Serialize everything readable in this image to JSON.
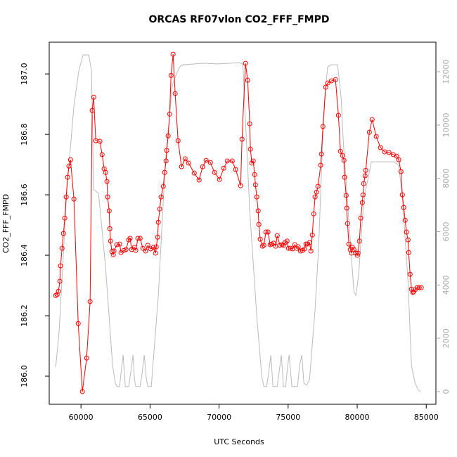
{
  "chart_data": {
    "type": "line",
    "title": "ORCAS RF07vlon CO2_FFF_FMPD",
    "x_label": "UTC Seconds",
    "y_label": "CO2_FFF_FMPD",
    "xlim": [
      57700,
      85700
    ],
    "ylim": [
      185.907,
      187.105
    ],
    "y2lim": [
      -475,
      13108
    ],
    "xticks": [
      60000,
      65000,
      70000,
      75000,
      80000,
      85000
    ],
    "yticks": [
      {
        "value": 186.0,
        "label": "186.0"
      },
      186.2,
      186.4,
      186.6,
      186.8,
      {
        "value": 187.0,
        "label": "187.0"
      }
    ],
    "y2ticks": [
      0,
      2000,
      4000,
      6000,
      8000,
      10000,
      12000
    ],
    "grid": false,
    "series": [
      {
        "color": "#bbbbbb",
        "axis": "y2",
        "x": [
          58170,
          58420,
          58980,
          59490,
          59850,
          60150,
          60560,
          60760,
          60920,
          61270,
          61780,
          62290,
          62490,
          62600,
          62800,
          62900,
          63050,
          63210,
          63460,
          63670,
          63770,
          63870,
          63970,
          64280,
          64430,
          64580,
          64740,
          64840,
          65090,
          65600,
          66110,
          66620,
          67130,
          67380,
          68910,
          69930,
          71460,
          71720,
          71860,
          72220,
          72730,
          73090,
          73240,
          73440,
          73590,
          73750,
          73900,
          74210,
          74410,
          74510,
          74660,
          74820,
          74970,
          75070,
          75270,
          75680,
          75830,
          75990,
          76140,
          76340,
          76550,
          76950,
          77210,
          77460,
          77670,
          77870,
          78080,
          78580,
          78840,
          78990,
          79350,
          79600,
          79760,
          79910,
          80110,
          80420,
          80620,
          81030,
          81230,
          82660,
          83010,
          83270,
          83680,
          83930,
          84190,
          84440,
          84590
        ],
        "values": [
          920,
          2290,
          7570,
          10730,
          12050,
          12630,
          12630,
          12050,
          7570,
          7440,
          4670,
          980,
          320,
          190,
          190,
          710,
          1370,
          190,
          190,
          980,
          1370,
          450,
          190,
          190,
          710,
          1370,
          450,
          190,
          190,
          3610,
          8620,
          11520,
          12180,
          12260,
          12320,
          12290,
          12340,
          12290,
          10730,
          6780,
          2820,
          580,
          190,
          190,
          710,
          1370,
          190,
          190,
          980,
          1370,
          190,
          190,
          980,
          1370,
          190,
          190,
          980,
          1370,
          320,
          240,
          450,
          3090,
          5460,
          8890,
          11260,
          12180,
          12260,
          12260,
          11000,
          9410,
          6780,
          4930,
          3750,
          3610,
          4400,
          6780,
          7570,
          8620,
          8620,
          8620,
          8490,
          7300,
          4140,
          980,
          320,
          50,
          0
        ]
      },
      {
        "color": "#ff0000",
        "marker": "circle",
        "x": [
          58170,
          58270,
          58370,
          58470,
          58520,
          58630,
          58730,
          58830,
          58930,
          59030,
          59130,
          59240,
          59490,
          59800,
          60100,
          60410,
          60660,
          60810,
          60920,
          61070,
          61370,
          61530,
          61680,
          61780,
          61880,
          61930,
          62040,
          62090,
          62140,
          62240,
          62340,
          62390,
          62600,
          62800,
          62900,
          63110,
          63260,
          63460,
          63560,
          63670,
          63870,
          63970,
          64120,
          64280,
          64480,
          64680,
          64840,
          65040,
          65240,
          65400,
          65450,
          65550,
          65600,
          65700,
          65800,
          65960,
          66060,
          66160,
          66210,
          66310,
          66420,
          66520,
          66670,
          66820,
          67030,
          67280,
          67540,
          67790,
          68200,
          68550,
          68810,
          69060,
          69370,
          69670,
          70030,
          70340,
          70590,
          70950,
          71200,
          71560,
          71660,
          71910,
          72070,
          72220,
          72270,
          72370,
          72470,
          72580,
          72630,
          72730,
          72830,
          72880,
          72980,
          73140,
          73240,
          73390,
          73540,
          73700,
          73800,
          73950,
          74100,
          74210,
          74410,
          74560,
          74660,
          74770,
          74920,
          75020,
          75170,
          75330,
          75480,
          75630,
          75730,
          75890,
          76040,
          76190,
          76290,
          76390,
          76550,
          76650,
          76750,
          76850,
          76950,
          77060,
          77160,
          77360,
          77410,
          77520,
          77720,
          77870,
          78130,
          78430,
          78640,
          78790,
          78940,
          79040,
          79090,
          79200,
          79250,
          79300,
          79400,
          79500,
          79600,
          79650,
          79760,
          79910,
          80010,
          80060,
          80160,
          80260,
          80370,
          80420,
          80470,
          80570,
          80620,
          80880,
          81080,
          81380,
          81690,
          81990,
          82300,
          82610,
          82860,
          83010,
          83170,
          83270,
          83370,
          83470,
          83570,
          83680,
          83730,
          83830,
          83930,
          84030,
          84080,
          84190,
          84340,
          84490,
          84640
        ],
        "values": [
          186.267,
          186.27,
          186.281,
          186.314,
          186.365,
          186.423,
          186.472,
          186.523,
          186.593,
          186.658,
          186.695,
          186.716,
          186.586,
          186.174,
          185.949,
          186.06,
          186.247,
          186.879,
          186.923,
          186.779,
          186.777,
          186.733,
          186.686,
          186.674,
          186.644,
          186.593,
          186.547,
          186.488,
          186.447,
          186.412,
          186.402,
          186.414,
          186.435,
          186.437,
          186.409,
          186.416,
          186.419,
          186.451,
          186.456,
          186.419,
          186.426,
          186.416,
          186.456,
          186.456,
          186.423,
          186.414,
          186.433,
          186.421,
          186.426,
          186.407,
          186.428,
          186.46,
          186.509,
          186.553,
          186.593,
          186.628,
          186.674,
          186.712,
          186.747,
          186.795,
          186.867,
          186.995,
          187.065,
          186.935,
          186.779,
          186.693,
          186.719,
          186.705,
          186.672,
          186.649,
          186.693,
          186.714,
          186.707,
          186.674,
          186.651,
          186.688,
          186.712,
          186.712,
          186.684,
          186.63,
          186.784,
          187.035,
          186.979,
          186.835,
          186.751,
          186.705,
          186.712,
          186.667,
          186.633,
          186.593,
          186.547,
          186.502,
          186.453,
          186.43,
          186.433,
          186.477,
          186.477,
          186.435,
          186.437,
          186.44,
          186.43,
          186.465,
          186.433,
          186.435,
          186.433,
          186.442,
          186.447,
          186.423,
          186.423,
          186.421,
          186.435,
          186.423,
          186.428,
          186.414,
          186.416,
          186.421,
          186.437,
          186.437,
          186.442,
          186.414,
          186.467,
          186.537,
          186.593,
          186.609,
          186.628,
          186.698,
          186.735,
          186.826,
          186.956,
          186.97,
          186.977,
          186.981,
          186.863,
          186.744,
          186.73,
          186.714,
          186.658,
          186.598,
          186.556,
          186.505,
          186.437,
          186.419,
          186.407,
          186.426,
          186.419,
          186.407,
          186.4,
          186.407,
          186.447,
          186.523,
          186.574,
          186.6,
          186.637,
          186.663,
          186.681,
          186.807,
          186.849,
          186.793,
          186.756,
          186.742,
          186.74,
          186.733,
          186.728,
          186.716,
          186.677,
          186.6,
          186.558,
          186.516,
          186.477,
          186.451,
          186.409,
          186.337,
          186.288,
          186.277,
          186.279,
          186.286,
          186.293,
          186.293,
          186.293
        ]
      }
    ]
  }
}
